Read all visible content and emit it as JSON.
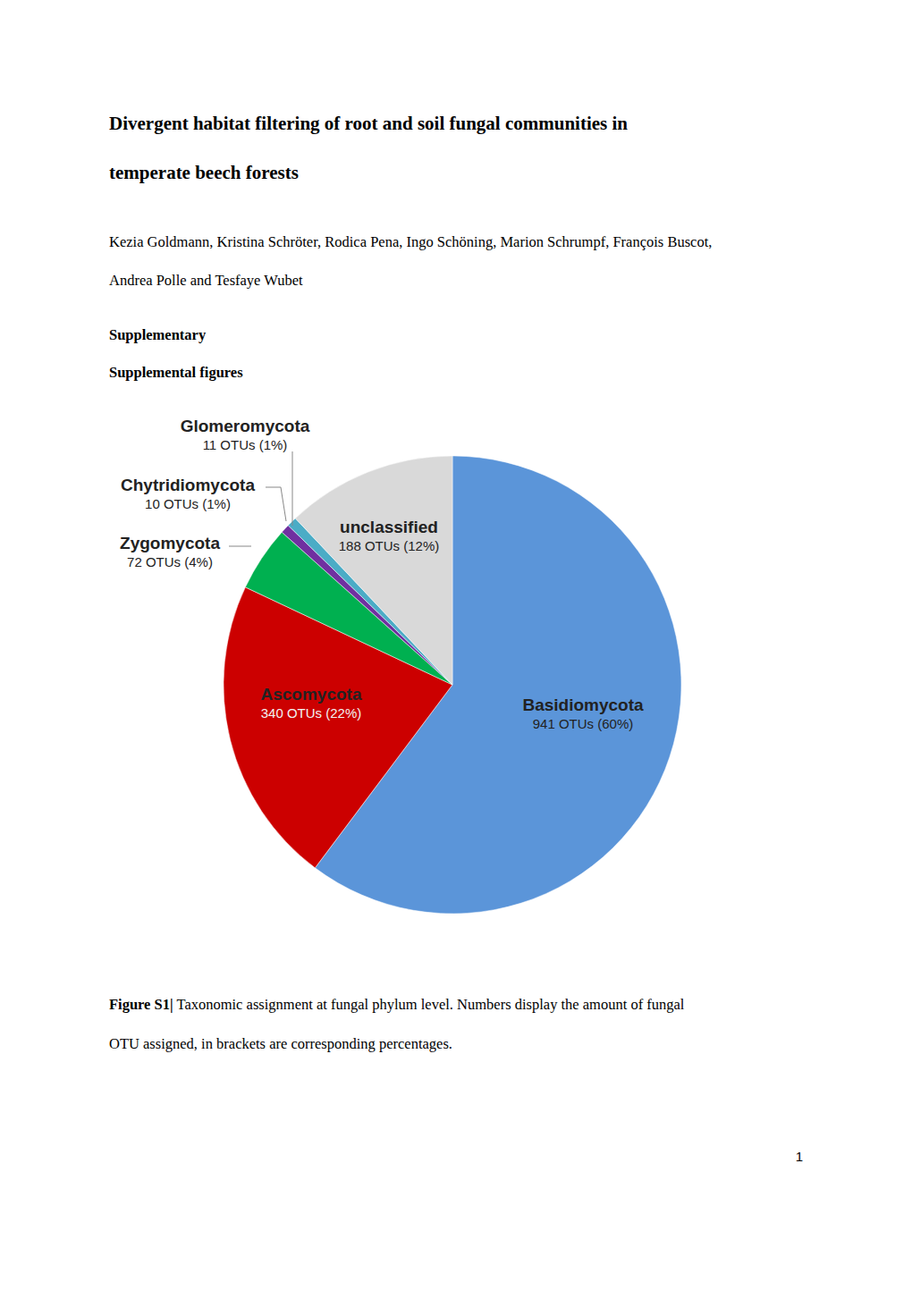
{
  "title_lines": [
    "Divergent habitat filtering of root and soil fungal communities in",
    "temperate beech forests"
  ],
  "author_lines": [
    "Kezia Goldmann, Kristina Schröter, Rodica Pena, Ingo Schöning, Marion Schrumpf, François Buscot,",
    "Andrea Polle and Tesfaye Wubet"
  ],
  "section": "Supplementary",
  "subsection": "Supplemental figures",
  "chart_data": {
    "type": "pie",
    "categories": [
      "Basidiomycota",
      "Ascomycota",
      "Zygomycota",
      "Chytridiomycota",
      "Glomeromycota",
      "unclassified"
    ],
    "values": [
      941,
      340,
      72,
      10,
      11,
      188
    ],
    "value_labels": [
      "941 OTUs (60%)",
      "340 OTUs (22%)",
      "72 OTUs (4%)",
      "10 OTUs (1%)",
      "11 OTUs (1%)",
      "188 OTUs (12%)"
    ],
    "colors": [
      "#5b95d9",
      "#cc0000",
      "#00b050",
      "#7030a0",
      "#4bacc6",
      "#d9d9d9"
    ],
    "data_labels": true
  },
  "caption": {
    "label": "Figure S1|",
    "lines": [
      " Taxonomic assignment at fungal phylum level. Numbers display the amount of fungal",
      "OTU assigned, in brackets are corresponding percentages."
    ]
  },
  "page_number": 1
}
